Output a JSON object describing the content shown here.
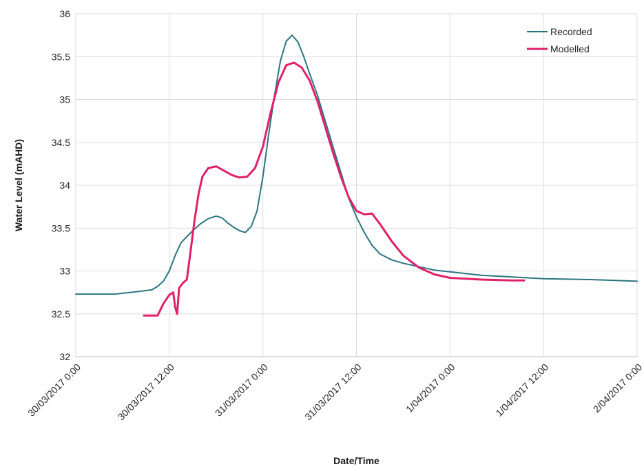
{
  "chart_data": {
    "type": "line",
    "xlabel": "Date/Time",
    "ylabel": "Water Level (mAHD)",
    "ylim": [
      32,
      36
    ],
    "xlim": [
      "2017-03-30 00:00",
      "2017-04-02 00:00"
    ],
    "y_ticks": [
      32,
      32.5,
      33,
      33.5,
      34,
      34.5,
      35,
      35.5,
      36
    ],
    "y_tick_labels": [
      "32",
      "32.5",
      "33",
      "33.5",
      "34",
      "34.5",
      "35",
      "35.5",
      "36"
    ],
    "x_ticks": [
      "2017-03-30 00:00",
      "2017-03-30 12:00",
      "2017-03-31 00:00",
      "2017-03-31 12:00",
      "2017-04-01 00:00",
      "2017-04-01 12:00",
      "2017-04-02 00:00"
    ],
    "x_tick_labels": [
      "30/03/2017 0:00",
      "30/03/2017 12:00",
      "31/03/2017 0:00",
      "31/03/2017 12:00",
      "1/04/2017 0:00",
      "1/04/2017 12:00",
      "2/04/2017 0:00"
    ],
    "grid": true,
    "legend_position": "top-right",
    "series": [
      {
        "name": "Recorded",
        "color": "#2a7480",
        "points": [
          [
            "2017-03-30 00:00",
            32.73
          ],
          [
            "2017-03-30 05:00",
            32.73
          ],
          [
            "2017-03-30 08:00",
            32.76
          ],
          [
            "2017-03-30 09:45",
            32.78
          ],
          [
            "2017-03-30 10:30",
            32.82
          ],
          [
            "2017-03-30 11:15",
            32.88
          ],
          [
            "2017-03-30 12:00",
            33.0
          ],
          [
            "2017-03-30 12:45",
            33.18
          ],
          [
            "2017-03-30 13:30",
            33.33
          ],
          [
            "2017-03-30 14:15",
            33.4
          ],
          [
            "2017-03-30 15:00",
            33.47
          ],
          [
            "2017-03-30 16:00",
            33.55
          ],
          [
            "2017-03-30 17:00",
            33.61
          ],
          [
            "2017-03-30 18:00",
            33.64
          ],
          [
            "2017-03-30 18:45",
            33.62
          ],
          [
            "2017-03-30 19:30",
            33.56
          ],
          [
            "2017-03-30 20:15",
            33.51
          ],
          [
            "2017-03-30 21:00",
            33.47
          ],
          [
            "2017-03-30 21:45",
            33.45
          ],
          [
            "2017-03-30 22:30",
            33.52
          ],
          [
            "2017-03-30 23:15",
            33.7
          ],
          [
            "2017-03-31 00:00",
            34.1
          ],
          [
            "2017-03-31 00:45",
            34.6
          ],
          [
            "2017-03-31 01:30",
            35.05
          ],
          [
            "2017-03-31 02:15",
            35.45
          ],
          [
            "2017-03-31 03:00",
            35.68
          ],
          [
            "2017-03-31 03:45",
            35.75
          ],
          [
            "2017-03-31 04:30",
            35.67
          ],
          [
            "2017-03-31 05:15",
            35.5
          ],
          [
            "2017-03-31 06:00",
            35.3
          ],
          [
            "2017-03-31 07:00",
            35.05
          ],
          [
            "2017-03-31 08:00",
            34.75
          ],
          [
            "2017-03-31 09:00",
            34.45
          ],
          [
            "2017-03-31 10:00",
            34.15
          ],
          [
            "2017-03-31 11:00",
            33.85
          ],
          [
            "2017-03-31 12:00",
            33.63
          ],
          [
            "2017-03-31 13:00",
            33.45
          ],
          [
            "2017-03-31 14:00",
            33.3
          ],
          [
            "2017-03-31 15:00",
            33.2
          ],
          [
            "2017-03-31 16:30",
            33.13
          ],
          [
            "2017-03-31 18:00",
            33.09
          ],
          [
            "2017-03-31 20:00",
            33.05
          ],
          [
            "2017-03-31 22:00",
            33.01
          ],
          [
            "2017-04-01 00:00",
            32.99
          ],
          [
            "2017-04-01 04:00",
            32.95
          ],
          [
            "2017-04-01 08:00",
            32.93
          ],
          [
            "2017-04-01 12:00",
            32.91
          ],
          [
            "2017-04-01 18:00",
            32.9
          ],
          [
            "2017-04-02 00:00",
            32.88
          ]
        ]
      },
      {
        "name": "Modelled",
        "color": "#e0206a",
        "points": [
          [
            "2017-03-30 08:45",
            32.48
          ],
          [
            "2017-03-30 10:30",
            32.48
          ],
          [
            "2017-03-30 11:15",
            32.62
          ],
          [
            "2017-03-30 12:00",
            32.72
          ],
          [
            "2017-03-30 12:30",
            32.75
          ],
          [
            "2017-03-30 12:45",
            32.58
          ],
          [
            "2017-03-30 13:00",
            32.5
          ],
          [
            "2017-03-30 13:15",
            32.8
          ],
          [
            "2017-03-30 13:45",
            32.86
          ],
          [
            "2017-03-30 14:15",
            32.9
          ],
          [
            "2017-03-30 14:45",
            33.25
          ],
          [
            "2017-03-30 15:15",
            33.6
          ],
          [
            "2017-03-30 15:45",
            33.9
          ],
          [
            "2017-03-30 16:15",
            34.1
          ],
          [
            "2017-03-30 17:00",
            34.2
          ],
          [
            "2017-03-30 18:00",
            34.22
          ],
          [
            "2017-03-30 19:00",
            34.17
          ],
          [
            "2017-03-30 20:00",
            34.12
          ],
          [
            "2017-03-30 21:00",
            34.09
          ],
          [
            "2017-03-30 22:00",
            34.1
          ],
          [
            "2017-03-30 23:00",
            34.2
          ],
          [
            "2017-03-31 00:00",
            34.45
          ],
          [
            "2017-03-31 01:00",
            34.85
          ],
          [
            "2017-03-31 02:00",
            35.2
          ],
          [
            "2017-03-31 03:00",
            35.4
          ],
          [
            "2017-03-31 04:00",
            35.43
          ],
          [
            "2017-03-31 05:00",
            35.37
          ],
          [
            "2017-03-31 06:00",
            35.22
          ],
          [
            "2017-03-31 07:00",
            34.98
          ],
          [
            "2017-03-31 08:00",
            34.68
          ],
          [
            "2017-03-31 09:00",
            34.38
          ],
          [
            "2017-03-31 10:00",
            34.1
          ],
          [
            "2017-03-31 11:00",
            33.86
          ],
          [
            "2017-03-31 12:00",
            33.7
          ],
          [
            "2017-03-31 13:00",
            33.66
          ],
          [
            "2017-03-31 14:00",
            33.67
          ],
          [
            "2017-03-31 15:00",
            33.55
          ],
          [
            "2017-03-31 16:30",
            33.35
          ],
          [
            "2017-03-31 18:00",
            33.18
          ],
          [
            "2017-03-31 20:00",
            33.04
          ],
          [
            "2017-03-31 22:00",
            32.96
          ],
          [
            "2017-04-01 00:00",
            32.92
          ],
          [
            "2017-04-01 04:00",
            32.9
          ],
          [
            "2017-04-01 08:00",
            32.89
          ],
          [
            "2017-04-01 09:30",
            32.89
          ]
        ]
      }
    ]
  }
}
